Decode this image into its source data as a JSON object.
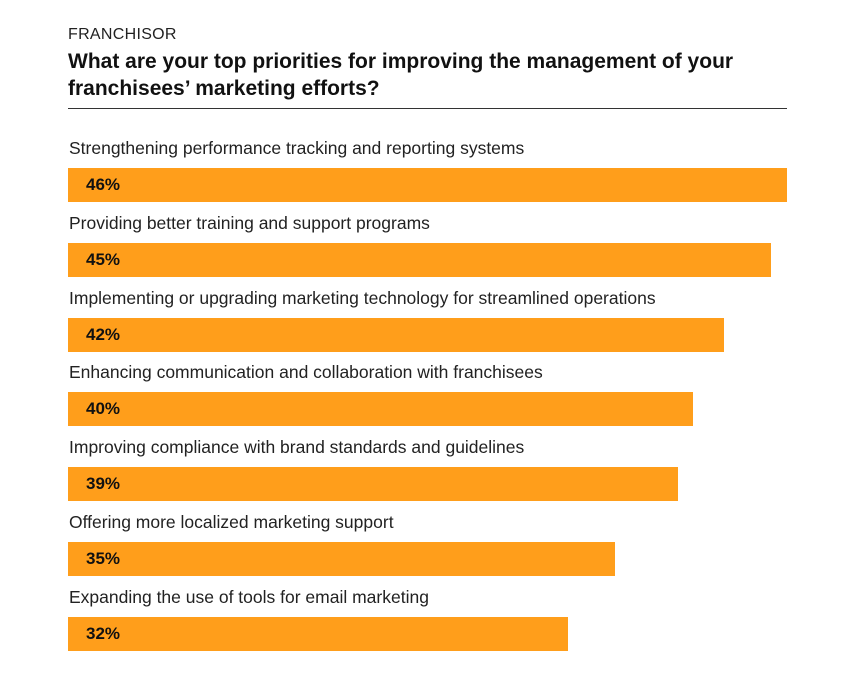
{
  "header": {
    "eyebrow": "FRANCHISOR",
    "title": "What are your top priorities for improving the management of your franchisees’ marketing efforts?"
  },
  "chart_data": {
    "type": "bar",
    "orientation": "horizontal",
    "categories": [
      "Strengthening performance tracking and reporting systems",
      "Providing better training and support programs",
      "Implementing or upgrading marketing technology for streamlined operations",
      "Enhancing communication and collaboration with franchisees",
      "Improving compliance with brand standards and guidelines",
      "Offering more localized marketing support",
      "Expanding the use of tools for email marketing"
    ],
    "values": [
      46,
      45,
      42,
      40,
      39,
      35,
      32
    ],
    "value_labels": [
      "46%",
      "45%",
      "42%",
      "40%",
      "39%",
      "35%",
      "32%"
    ],
    "unit": "%",
    "bar_color": "#ff9e1b",
    "grid": false,
    "legend": "none"
  }
}
